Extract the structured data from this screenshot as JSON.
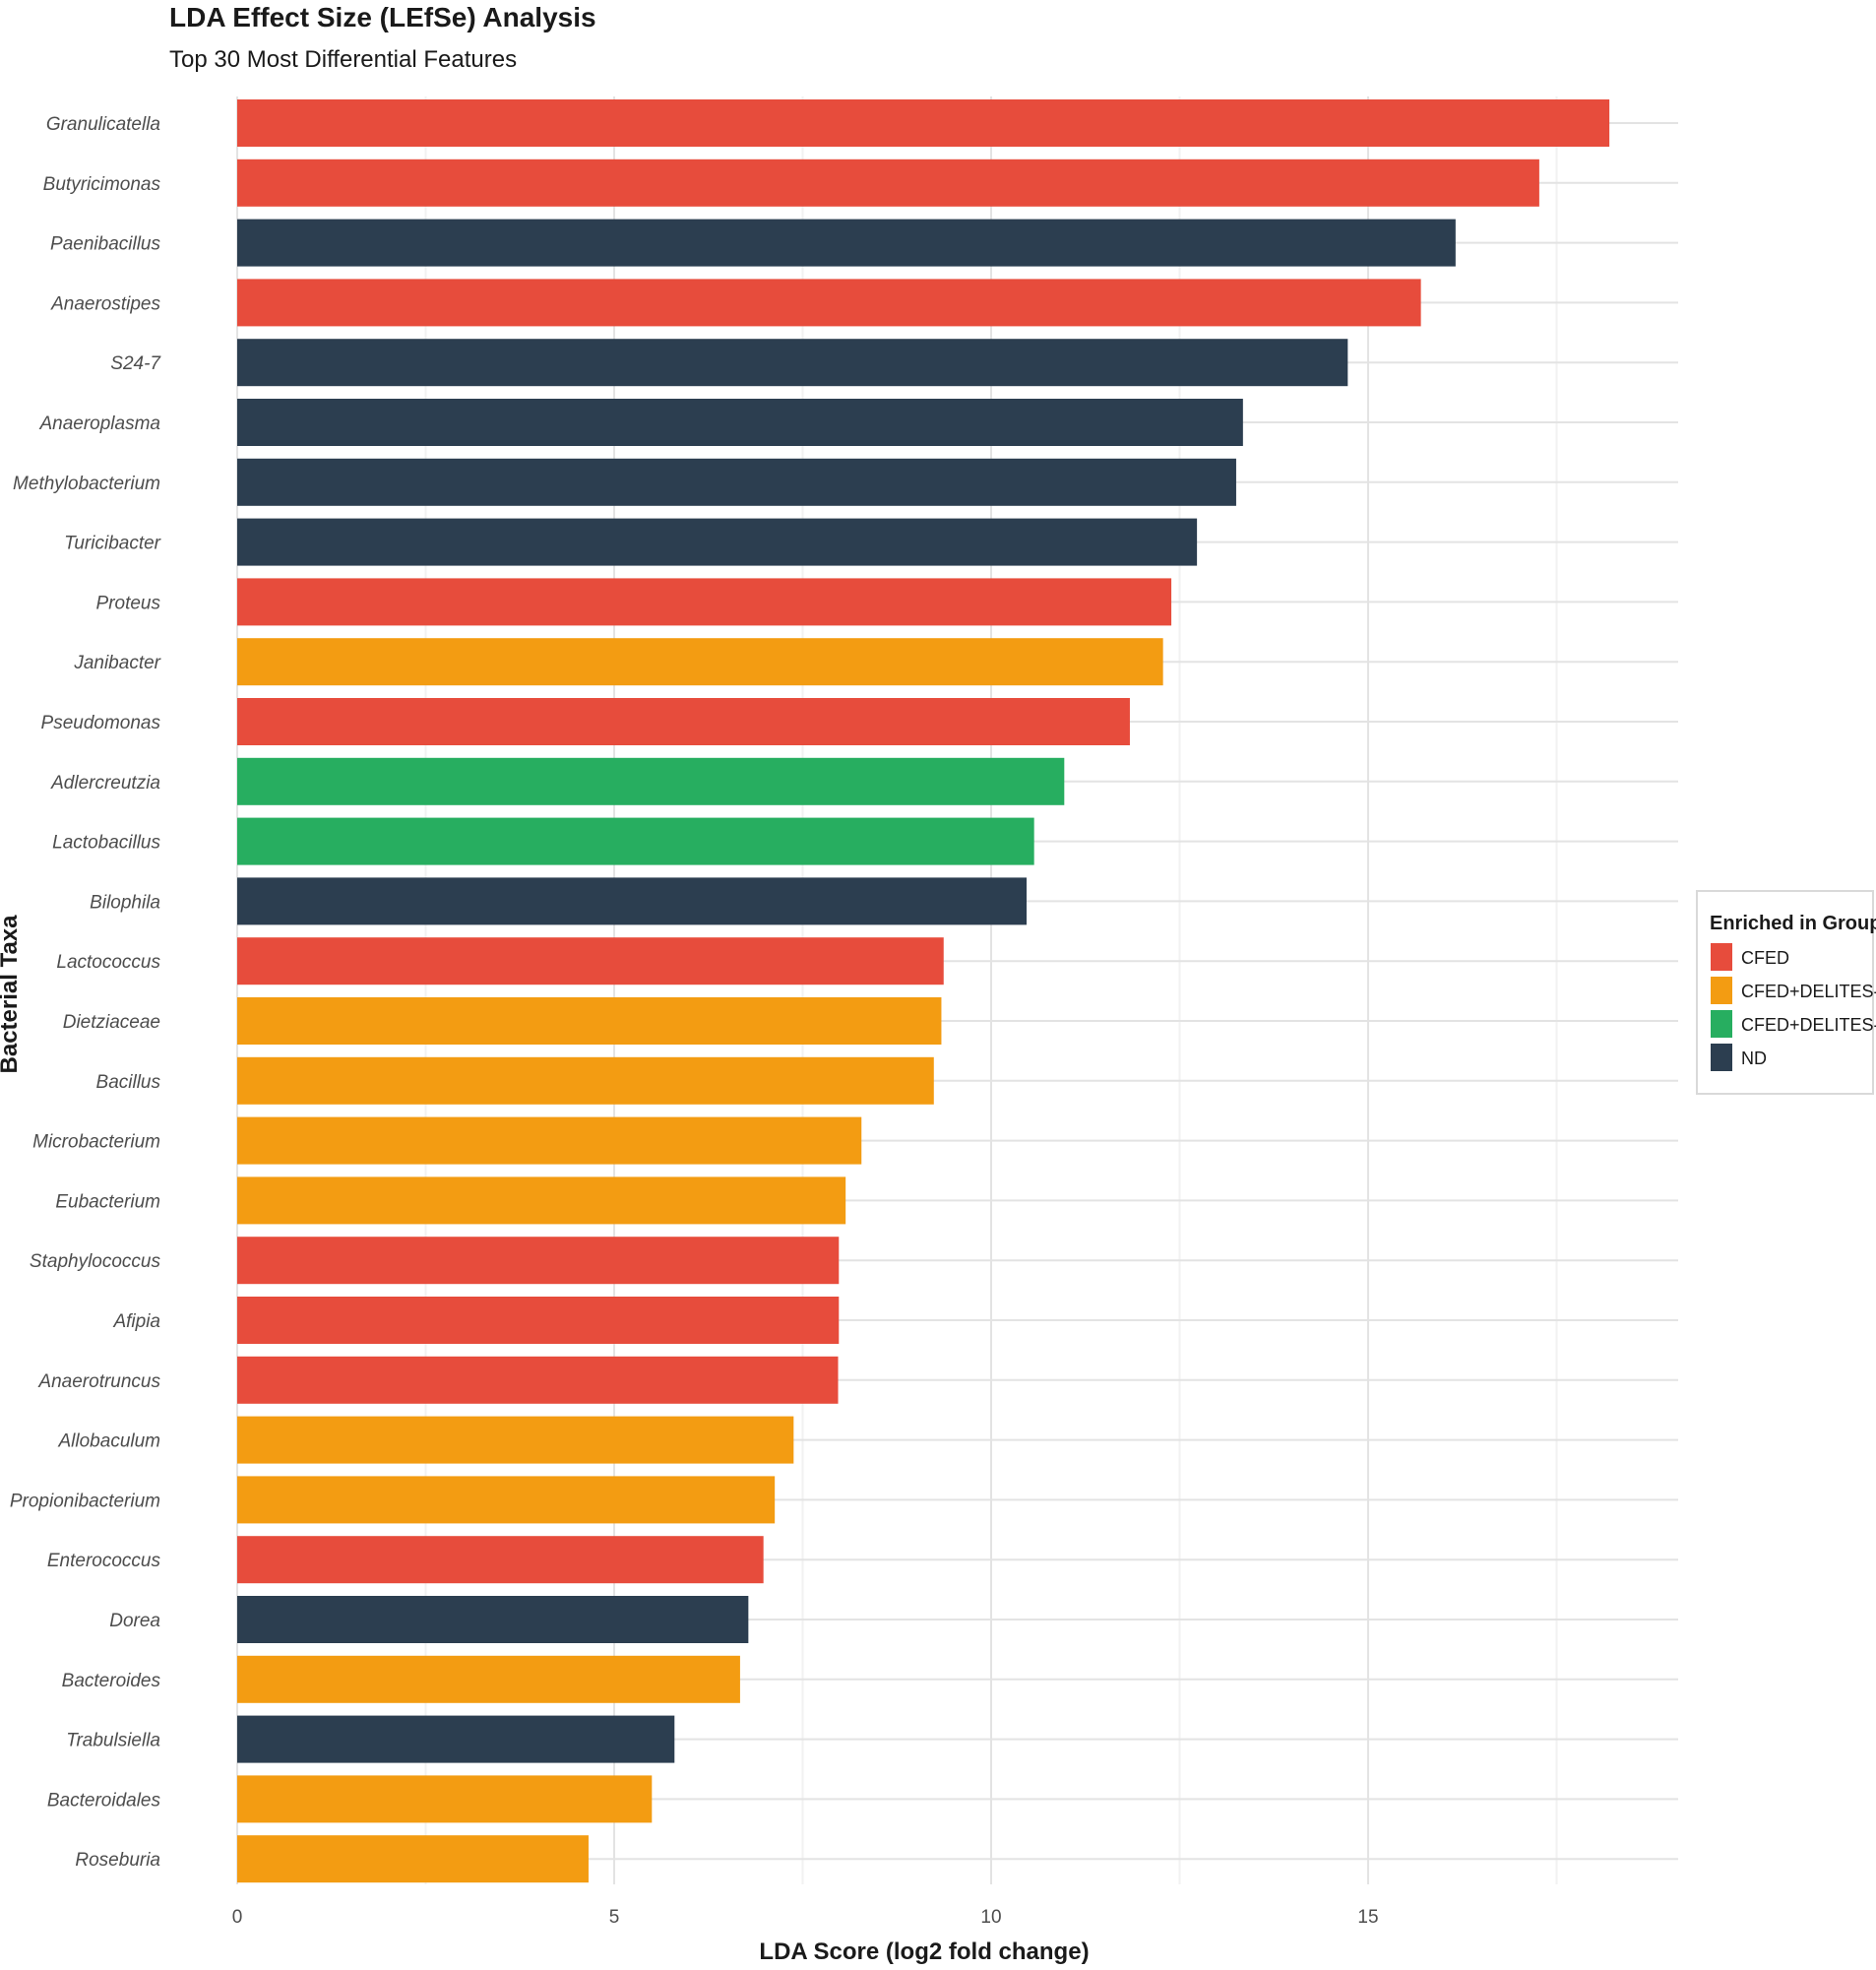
{
  "chart_data": {
    "type": "bar",
    "orientation": "horizontal",
    "title": "LDA Effect Size (LEfSe) Analysis",
    "subtitle": "Top 30 Most Differential Features",
    "xlabel": "LDA Score (log2 fold change)",
    "ylabel": "Bacterial Taxa",
    "xlim": [
      0,
      19.1
    ],
    "xticks": [
      0,
      5,
      10,
      15
    ],
    "grid": true,
    "legend": {
      "title": "Enriched in Group",
      "position": "right",
      "entries": [
        {
          "name": "CFED",
          "color": "#e74c3c"
        },
        {
          "name": "CFED+DELITES-H",
          "color": "#f39c12"
        },
        {
          "name": "CFED+DELITES-L",
          "color": "#27ae60"
        },
        {
          "name": "ND",
          "color": "#2c3e50"
        }
      ]
    },
    "categories": [
      "Granulicatella",
      "Butyricimonas",
      "Paenibacillus",
      "Anaerostipes",
      "S24-7",
      "Anaeroplasma",
      "Methylobacterium",
      "Turicibacter",
      "Proteus",
      "Janibacter",
      "Pseudomonas",
      "Adlercreutzia",
      "Lactobacillus",
      "Bilophila",
      "Lactococcus",
      "Dietziaceae",
      "Bacillus",
      "Microbacterium",
      "Eubacterium",
      "Staphylococcus",
      "Afipia",
      "Anaerotruncus",
      "Allobaculum",
      "Propionibacterium",
      "Enterococcus",
      "Dorea",
      "Bacteroides",
      "Trabulsiella",
      "Bacteroidales",
      "Roseburia"
    ],
    "values": [
      18.2,
      17.27,
      16.16,
      15.7,
      14.73,
      13.34,
      13.25,
      12.73,
      12.39,
      12.28,
      11.84,
      10.97,
      10.57,
      10.47,
      9.37,
      9.34,
      9.24,
      8.28,
      8.07,
      7.98,
      7.98,
      7.97,
      7.38,
      7.13,
      6.98,
      6.78,
      6.67,
      5.8,
      5.5,
      4.66
    ],
    "groups": [
      "CFED",
      "CFED",
      "ND",
      "CFED",
      "ND",
      "ND",
      "ND",
      "ND",
      "CFED",
      "CFED+DELITES-H",
      "CFED",
      "CFED+DELITES-L",
      "CFED+DELITES-L",
      "ND",
      "CFED",
      "CFED+DELITES-H",
      "CFED+DELITES-H",
      "CFED+DELITES-H",
      "CFED+DELITES-H",
      "CFED",
      "CFED",
      "CFED",
      "CFED+DELITES-H",
      "CFED+DELITES-H",
      "CFED",
      "ND",
      "CFED+DELITES-H",
      "ND",
      "CFED+DELITES-H",
      "CFED+DELITES-H"
    ]
  }
}
